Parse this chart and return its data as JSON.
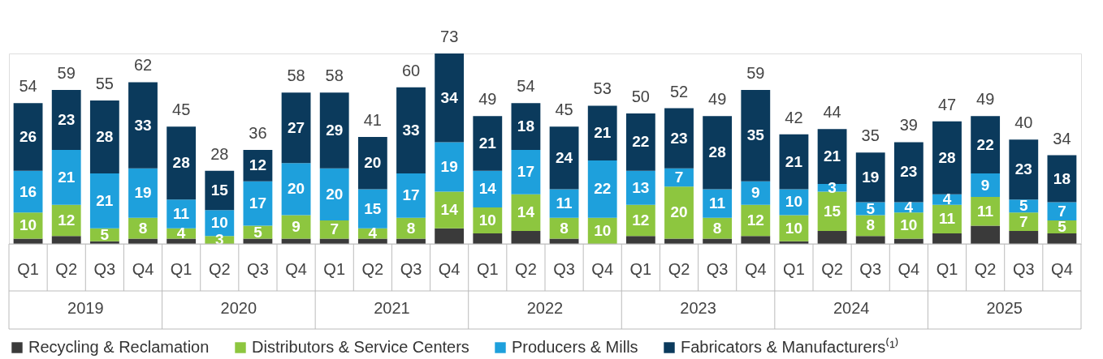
{
  "chart_data": {
    "type": "bar",
    "stacked": true,
    "categories": [
      "Q1",
      "Q2",
      "Q3",
      "Q4",
      "Q1",
      "Q2",
      "Q3",
      "Q4",
      "Q1",
      "Q2",
      "Q3",
      "Q4",
      "Q1",
      "Q2",
      "Q3",
      "Q4",
      "Q1",
      "Q2",
      "Q3",
      "Q4",
      "Q1",
      "Q2",
      "Q3",
      "Q4",
      "Q1",
      "Q2",
      "Q3",
      "Q4"
    ],
    "annotations": [
      "2019",
      "2020",
      "2021",
      "2022",
      "2023",
      "2024",
      "2025"
    ],
    "series": [
      {
        "name": "Recycling & Reclamation",
        "color": "#3a3a3a",
        "values": [
          2,
          3,
          1,
          2,
          2,
          0,
          2,
          2,
          2,
          2,
          2,
          6,
          4,
          5,
          2,
          0,
          3,
          2,
          2,
          3,
          1,
          5,
          3,
          2,
          4,
          7,
          5,
          4
        ]
      },
      {
        "name": "Distributors & Service Centers",
        "color": "#8dc63f",
        "values": [
          10,
          12,
          5,
          8,
          4,
          3,
          5,
          9,
          7,
          4,
          8,
          14,
          10,
          14,
          8,
          10,
          12,
          20,
          8,
          12,
          10,
          15,
          8,
          10,
          11,
          11,
          7,
          5
        ],
        "value_labels": [
          "10",
          "12",
          "5",
          "8",
          "4",
          "3",
          "5",
          "9",
          "7",
          "4",
          "8",
          "14",
          "10",
          "14",
          "8",
          "10",
          "12",
          "20",
          "8",
          "12",
          "10",
          "15",
          "8",
          "10",
          "11",
          "11",
          "7",
          "5"
        ]
      },
      {
        "name": "Producers & Mills",
        "color": "#1ea0dc",
        "values": [
          16,
          21,
          21,
          19,
          11,
          10,
          17,
          20,
          20,
          15,
          17,
          19,
          14,
          17,
          11,
          22,
          13,
          7,
          11,
          9,
          10,
          3,
          5,
          4,
          4,
          9,
          5,
          7
        ],
        "value_labels": [
          "16",
          "21",
          "21",
          "19",
          "11",
          "10",
          "17",
          "20",
          "20",
          "15",
          "17",
          "19",
          "14",
          "17",
          "11",
          "22",
          "13",
          "7",
          "11",
          "9",
          "10",
          "3",
          "5",
          "4",
          "4",
          "9",
          "5",
          "7"
        ]
      },
      {
        "name": "Fabricators & Manufacturers⁽¹⁾",
        "color": "#0b3a5c",
        "values": [
          26,
          23,
          28,
          33,
          28,
          15,
          12,
          27,
          29,
          20,
          33,
          34,
          21,
          18,
          24,
          21,
          22,
          23,
          28,
          35,
          21,
          21,
          19,
          23,
          28,
          22,
          23,
          18
        ],
        "value_labels": [
          "26",
          "23",
          "28",
          "33",
          "28",
          "15",
          "12",
          "27",
          "29",
          "20",
          "33",
          "34",
          "21",
          "18",
          "24",
          "21",
          "22",
          "23",
          "28",
          "35",
          "21",
          "21",
          "19",
          "23",
          "28",
          "22",
          "23",
          "18"
        ]
      }
    ],
    "totals": [
      "54",
      "59",
      "55",
      "62",
      "45",
      "28",
      "36",
      "58",
      "58",
      "41",
      "60",
      "73",
      "49",
      "54",
      "45",
      "53",
      "50",
      "52",
      "49",
      "59",
      "42",
      "44",
      "35",
      "39",
      "47",
      "49",
      "40",
      "34"
    ],
    "legend": "bottom"
  }
}
